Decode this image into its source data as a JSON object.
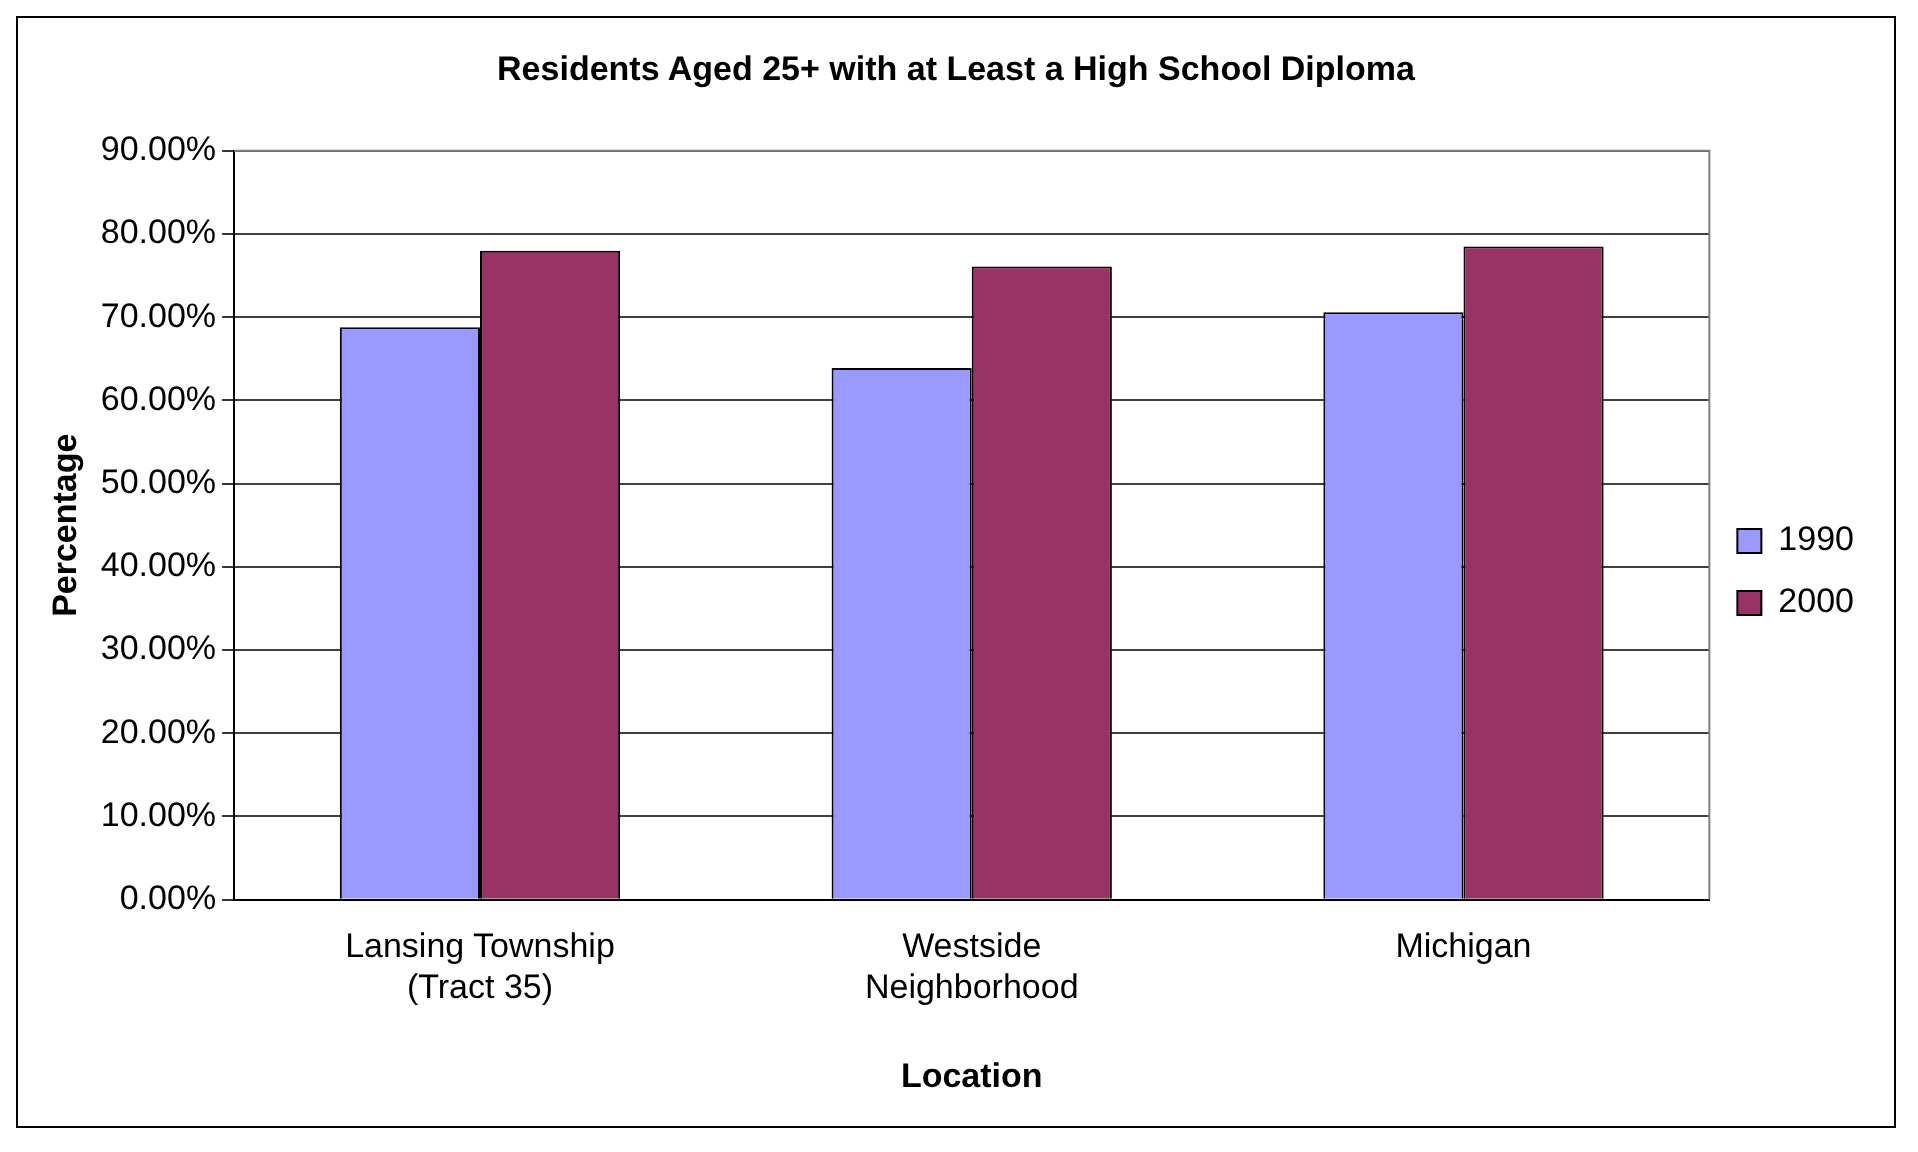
{
  "chart_data": {
    "type": "bar",
    "title": "Residents Aged 25+ with at Least a High School Diploma",
    "xlabel": "Location",
    "ylabel": "Percentage",
    "categories": [
      "Lansing Township\n(Tract 35)",
      "Westside\nNeighborhood",
      "Michigan"
    ],
    "series": [
      {
        "name": "1990",
        "color": "#9999ff",
        "values": [
          68.8,
          63.9,
          70.6
        ]
      },
      {
        "name": "2000",
        "color": "#993366",
        "values": [
          78.0,
          76.1,
          78.5
        ]
      }
    ],
    "ylim": [
      0,
      90
    ],
    "yticks": [
      {
        "value": 0,
        "label": "0.00%"
      },
      {
        "value": 10,
        "label": "10.00%"
      },
      {
        "value": 20,
        "label": "20.00%"
      },
      {
        "value": 30,
        "label": "30.00%"
      },
      {
        "value": 40,
        "label": "40.00%"
      },
      {
        "value": 50,
        "label": "50.00%"
      },
      {
        "value": 60,
        "label": "60.00%"
      },
      {
        "value": 70,
        "label": "70.00%"
      },
      {
        "value": 80,
        "label": "80.00%"
      },
      {
        "value": 90,
        "label": "90.00%"
      }
    ],
    "grid": "y",
    "legend": "right"
  }
}
